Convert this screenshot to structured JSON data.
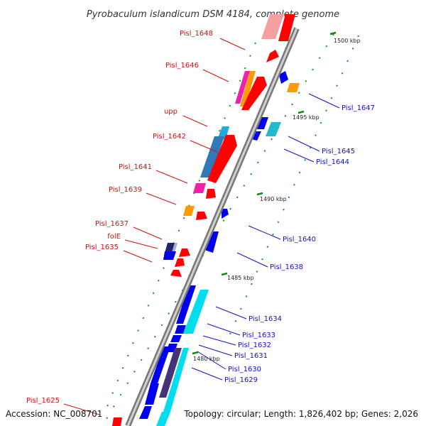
{
  "header": {
    "title": "Pyrobaculum islandicum DSM 4184, complete genome"
  },
  "footer": {
    "accession": "Accession: NC_008701",
    "summary": "Topology: circular; Length: 1,826,402 bp; Genes: 2,026"
  },
  "scale": {
    "ticks": [
      {
        "label": "1500 kbp"
      },
      {
        "label": "1495 kbp"
      },
      {
        "label": "1490 kbp"
      },
      {
        "label": "1485 kbp"
      },
      {
        "label": "1480 kbp"
      }
    ]
  },
  "labels": {
    "reverse_strand": [
      "Pisl_1648",
      "Pisl_1646",
      "upp",
      "Pisl_1642",
      "Pisl_1641",
      "Pisl_1639",
      "Pisl_1637",
      "folE",
      "Pisl_1635",
      "Pisl_1625"
    ],
    "forward_strand": [
      "Pisl_1647",
      "Pisl_1645",
      "Pisl_1644",
      "Pisl_1640",
      "Pisl_1638",
      "Pisl_1634",
      "Pisl_1633",
      "Pisl_1632",
      "Pisl_1631",
      "Pisl_1630",
      "Pisl_1629"
    ]
  },
  "colors": {
    "reverse_label": "#cc1111",
    "forward_label": "#1111cc",
    "cds_reverse": "#ff0000",
    "cds_forward": "#0000ee",
    "backbone": "#8a8a8a",
    "tick": "#118811"
  }
}
